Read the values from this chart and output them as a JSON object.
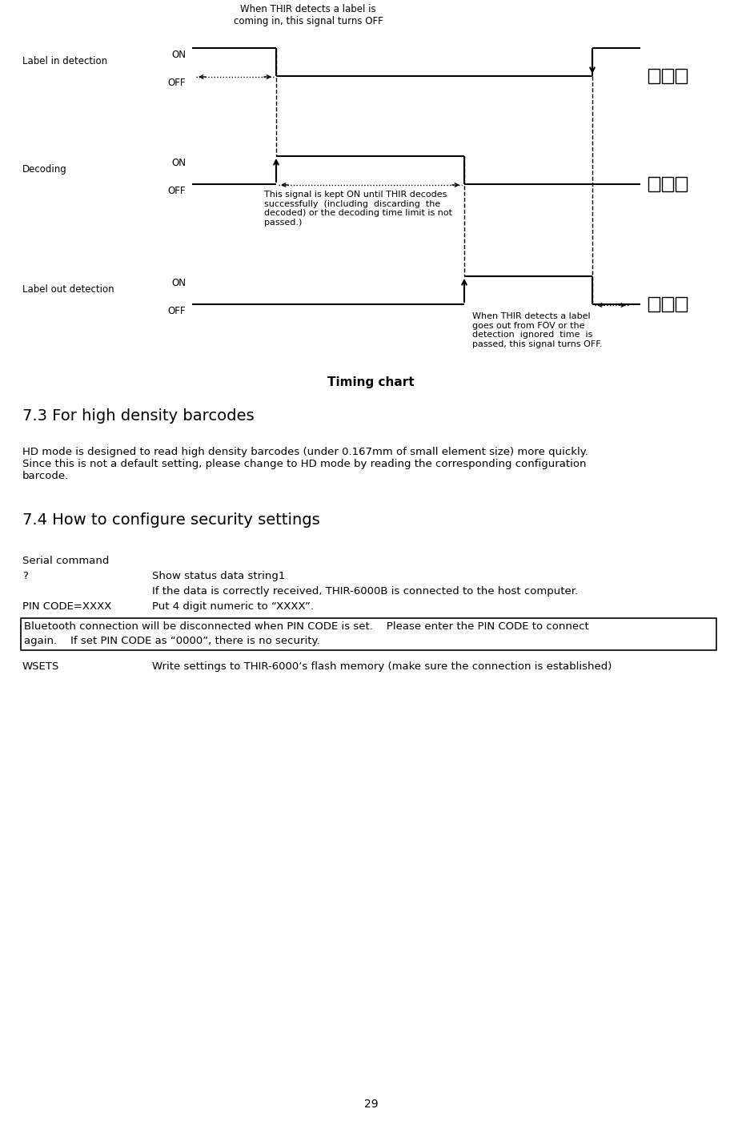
{
  "page_number": "29",
  "timing_chart_title": "Timing chart",
  "bg_color": "#ffffff",
  "font_color": "#000000",
  "top_annotation_text": "When THIR detects a label is\ncoming in, this signal turns OFF",
  "label_in_detection": "Label in detection",
  "decoding_label": "Decoding",
  "label_out_detection": "Label out detection",
  "on_label": "ON",
  "off_label": "OFF",
  "decoding_annotation": "This signal is kept ON until THIR decodes\nsuccessfully  (including  discarding  the\ndecoded) or the decoding time limit is not\npassed.)",
  "label_out_annotation": "When THIR detects a label\ngoes out from FOV or the\ndetection  ignored  time  is\npassed, this signal turns OFF.",
  "section_7_3_title": "7.3 For high density barcodes",
  "section_7_3_body": "HD mode is designed to read high density barcodes (under 0.167mm of small element size) more quickly.\nSince this is not a default setting, please change to HD mode by reading the corresponding configuration\nbarcode.",
  "section_7_4_title": "7.4 How to configure security settings",
  "serial_command_label": "Serial command",
  "cmd_q": "?",
  "cmd_q_desc1": "Show status data string1",
  "cmd_q_desc2": "If the data is correctly received, THIR-6000B is connected to the host computer.",
  "cmd_pin": "PIN CODE=XXXX",
  "cmd_pin_desc": "Put 4 digit numeric to “XXXX”.",
  "box_text_line1": "Bluetooth connection will be disconnected when PIN CODE is set.    Please enter the PIN CODE to connect",
  "box_text_line2": "again.    If set PIN CODE as “0000”, there is no security.",
  "cmd_wsets": "WSETS",
  "cmd_wsets_desc": "Write settings to THIR-6000’s flash memory (make sure the connection is established)"
}
